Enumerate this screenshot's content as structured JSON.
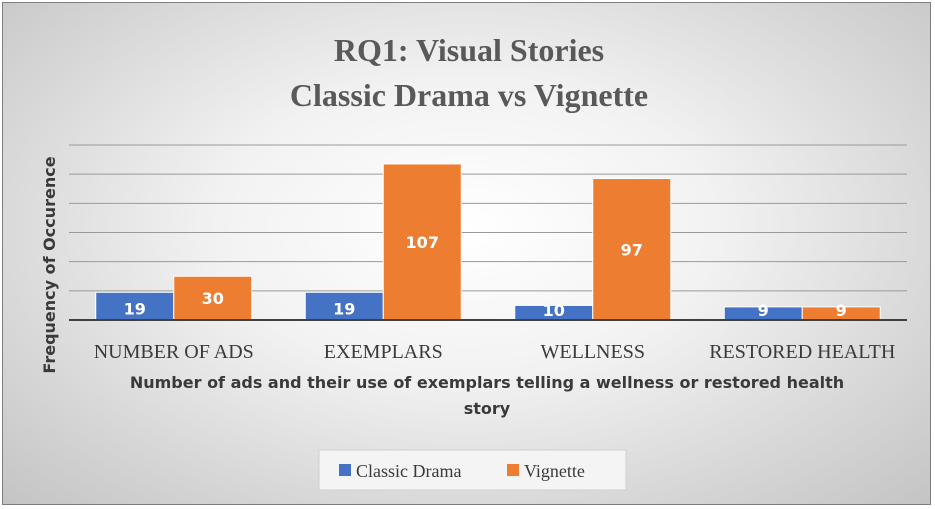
{
  "chart_data": {
    "type": "bar",
    "title_lines": [
      "RQ1: Visual Stories",
      "Classic Drama vs Vignette"
    ],
    "categories": [
      "NUMBER OF ADS",
      "EXEMPLARS",
      "WELLNESS",
      "RESTORED HEALTH"
    ],
    "series": [
      {
        "name": "Classic Drama",
        "values": [
          19,
          19,
          10,
          9
        ],
        "color": "#4472c4"
      },
      {
        "name": "Vignette",
        "values": [
          30,
          107,
          97,
          9
        ],
        "color": "#ed7d31"
      }
    ],
    "xlabel_lines": [
      "Number of ads and their use of exemplars telling a wellness or restored health",
      "story"
    ],
    "ylabel": "Frequency of Occurence",
    "ylim": [
      0,
      120
    ],
    "grid": true,
    "legend_position": "bottom",
    "data_labels": true
  }
}
